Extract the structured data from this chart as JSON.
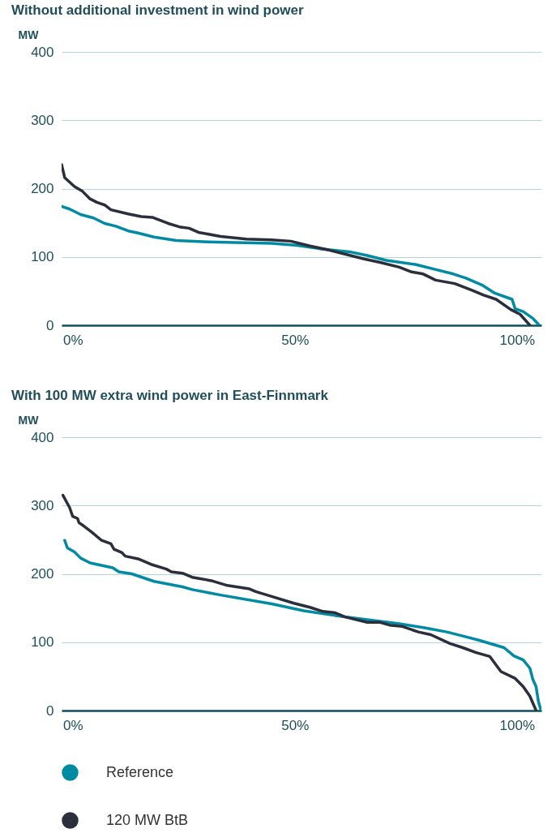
{
  "chart_data": [
    {
      "type": "line",
      "title": "Without additional investment in wind power",
      "ylabel": "MW",
      "xlim": [
        -2.5,
        105.5
      ],
      "xticks": [
        {
          "value": 0,
          "label": "0%"
        },
        {
          "value": 50,
          "label": "50%"
        },
        {
          "value": 100,
          "label": "100%"
        }
      ],
      "ylim": [
        0,
        400
      ],
      "yticks": [
        0,
        100,
        200,
        300,
        400
      ],
      "grid": "y",
      "legend": false,
      "series": [
        {
          "color": "#008ba3",
          "x": [
            -2.5,
            -0.7,
            1.8,
            4.7,
            7.2,
            9.7,
            12.5,
            14.7,
            18.3,
            23.3,
            30.5,
            44.8,
            50.5,
            55.6,
            62.7,
            66.3,
            70.6,
            77.1,
            81.4,
            85.7,
            88.5,
            92.1,
            95,
            98.9,
            99.6,
            101.4,
            103.6,
            105
          ],
          "values": [
            174,
            170,
            162,
            157,
            149,
            145,
            138,
            135,
            129,
            124,
            122,
            120,
            117,
            112,
            107,
            102,
            95,
            89,
            82,
            75,
            69,
            59,
            47,
            38,
            24,
            20,
            10,
            0
          ]
        },
        {
          "color": "#2b2f3c",
          "x": [
            -2.5,
            -1.8,
            0.4,
            2.2,
            3.9,
            5.4,
            7.2,
            8.6,
            12.5,
            15.4,
            17.9,
            21.5,
            24,
            26.2,
            28.3,
            33.3,
            39.1,
            44.8,
            49.1,
            53.4,
            57.7,
            62,
            65.6,
            69.2,
            73.5,
            76.3,
            78.9,
            81.7,
            86,
            90,
            92.5,
            95.3,
            98.6,
            100.7,
            102.9
          ],
          "values": [
            235,
            216,
            203,
            196,
            185,
            180,
            176,
            169,
            163,
            159,
            158,
            149,
            144,
            142,
            136,
            130,
            126,
            125,
            123,
            116,
            110,
            103,
            97,
            92,
            85,
            78,
            75,
            66,
            61,
            51,
            44,
            38,
            23,
            16,
            0
          ]
        }
      ]
    },
    {
      "type": "line",
      "title": "With 100 MW extra wind power in East-Finnmark",
      "ylabel": "MW",
      "xlim": [
        -2.5,
        105.5
      ],
      "xticks": [
        {
          "value": 0,
          "label": "0%"
        },
        {
          "value": 50,
          "label": "50%"
        },
        {
          "value": 100,
          "label": "100%"
        }
      ],
      "ylim": [
        0,
        400
      ],
      "yticks": [
        0,
        100,
        200,
        300,
        400
      ],
      "grid": "y",
      "legend": "bottom",
      "series": [
        {
          "name": "Reference",
          "color": "#008ba3",
          "x": [
            -1.8,
            -1.2,
            0.4,
            1.8,
            3.9,
            9,
            10.4,
            13.3,
            18.3,
            24.7,
            26.9,
            33.3,
            44.8,
            52,
            59.1,
            66.3,
            73.5,
            79.2,
            84.2,
            87.8,
            91.4,
            97.1,
            99.3,
            101.4,
            102.9,
            103.6,
            104.3,
            104.8,
            105.4
          ],
          "values": [
            249,
            238,
            232,
            223,
            216,
            209,
            203,
            200,
            189,
            181,
            177,
            169,
            156,
            146,
            139,
            133,
            127,
            121,
            115,
            109,
            103,
            92,
            80,
            74,
            62,
            45,
            35,
            14,
            0
          ]
        },
        {
          "name": "120 MW BtB",
          "color": "#2b2f3c",
          "x": [
            -2.2,
            -0.7,
            0,
            1.1,
            1.4,
            2.5,
            4.3,
            6.5,
            8.6,
            9.3,
            11.1,
            11.8,
            14.7,
            17.6,
            21.1,
            22.2,
            24.7,
            26.9,
            31.2,
            34.8,
            39.8,
            41.2,
            44.8,
            49.8,
            53.4,
            56.3,
            59.1,
            61.3,
            66.3,
            69.2,
            71.3,
            74.2,
            77.8,
            80.6,
            84.9,
            87.8,
            90.7,
            93.9,
            96.4,
            99.6,
            101.4,
            102.9,
            104.3
          ],
          "values": [
            315,
            297,
            284,
            281,
            275,
            270,
            261,
            249,
            244,
            236,
            231,
            226,
            222,
            214,
            207,
            203,
            201,
            195,
            190,
            183,
            178,
            174,
            167,
            157,
            151,
            145,
            143,
            137,
            129,
            129,
            125,
            123,
            115,
            111,
            98,
            92,
            85,
            79,
            57,
            47,
            35,
            21,
            0
          ]
        }
      ]
    }
  ]
}
